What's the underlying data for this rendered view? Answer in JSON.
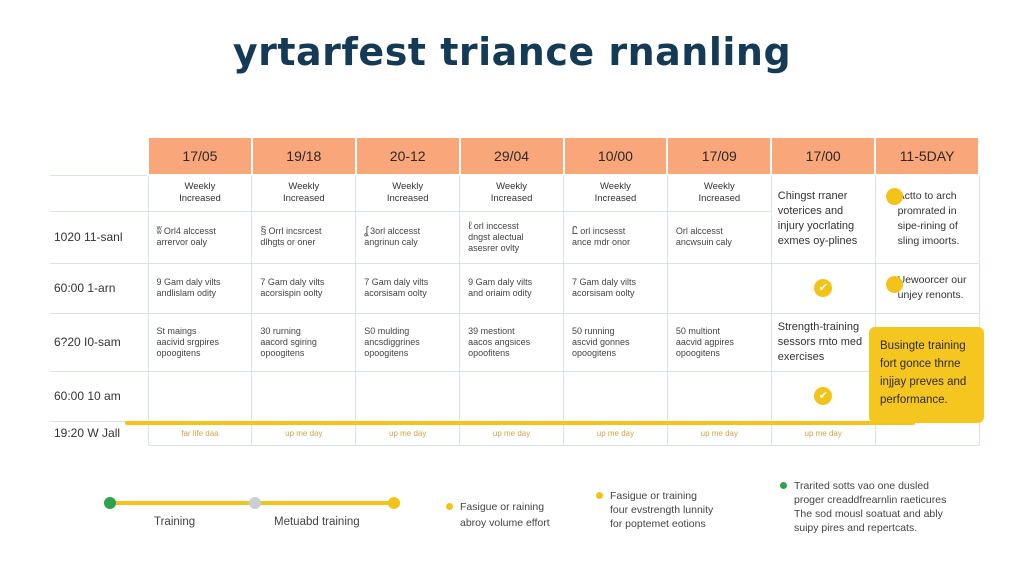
{
  "title": "yrtarfest triance rnanling",
  "days": [
    "17/05",
    "19/18",
    "20-12",
    "29/04",
    "10/00",
    "17/09",
    "17/00",
    "11-5DAY"
  ],
  "weekly_row": {
    "cells": [
      [
        "Weekly",
        "Increased"
      ],
      [
        "Weekly",
        "Increased"
      ],
      [
        "Weekly",
        "Increased"
      ],
      [
        "Weekly",
        "Increased"
      ],
      [
        "Weekly",
        "Increased"
      ],
      [
        "Weekly",
        "Increased"
      ]
    ]
  },
  "rows": [
    {
      "label": "1020 11-sanl",
      "cells": [
        {
          "icon": "ʬ",
          "text": [
            "Orl4 alccesst",
            "arrervor oaly"
          ]
        },
        {
          "icon": "§",
          "text": [
            "Orrl incsrcest",
            "dlhgts or oner"
          ]
        },
        {
          "icon": "ʆ",
          "text": [
            "3orl alccesst",
            "angrinun caly"
          ]
        },
        {
          "icon": "ℓ",
          "text": [
            "orl inccesst",
            "dngst alectual",
            "asesrer ovlty"
          ]
        },
        {
          "icon": "Ꮭ",
          "text": [
            "orl incsesst",
            "ance mdr onor"
          ]
        },
        {
          "icon": "",
          "text": [
            "Orl alccesst",
            "ancwsuin caly"
          ]
        }
      ],
      "col7": [
        "Chingst rraner",
        "voterices and",
        "injury yocrlating",
        "exmes oy-plines"
      ],
      "col8": [
        "Actto to arch",
        "promrated in",
        "sipe-rining of",
        "sling imoorts."
      ]
    },
    {
      "label": "60:00 1-arn",
      "cells": [
        {
          "text": [
            "9 Gam daly vilts",
            "andlislam odity"
          ]
        },
        {
          "text": [
            "7 Gam daly vilts",
            "acorsispin oolty"
          ]
        },
        {
          "text": [
            "7 Gam daly vilts",
            "acorsisam oolty"
          ]
        },
        {
          "text": [
            "9 Gam daly vilts",
            "and oriaim odity"
          ]
        },
        {
          "text": [
            "7 Gam daly vilts",
            "acorsisam oolty"
          ]
        },
        {
          "text": []
        }
      ],
      "col7_icon": "✔",
      "col8": [
        "Uewoorcer our",
        "unjey renonts."
      ]
    },
    {
      "label": "6?20 I0-sam",
      "cells": [
        {
          "text": [
            "St maings",
            "aacivid srgpires",
            "opoogitens"
          ]
        },
        {
          "text": [
            "30 rurning",
            "aacord sgiring",
            "opoogitens"
          ]
        },
        {
          "text": [
            "S0 mulding",
            "ancsdiggrines",
            "opoogitens"
          ]
        },
        {
          "text": [
            "39 mestiont",
            "aacos angsices",
            "opoofitens"
          ]
        },
        {
          "text": [
            "50 running",
            "ascvid gonnes",
            "opoogitens"
          ]
        },
        {
          "text": [
            "50 multiont",
            "aacvid agpires",
            "opoogitens"
          ]
        }
      ],
      "col7": [
        "Strength-training",
        "sessors rnto med",
        "exercises"
      ]
    },
    {
      "label": "60:00 10 am",
      "col7_icon": "✔"
    },
    {
      "label": "19:20 W Jall",
      "small": [
        "far life daa",
        "up me day",
        "up me day",
        "up me day",
        "up me day",
        "up me day",
        "up me day"
      ]
    }
  ],
  "callout": [
    "Busingte training",
    "fort gonce thrne",
    "injjay preves and",
    "performance."
  ],
  "legend": {
    "training_label": "Training",
    "metuabd_label": "Metuabd training",
    "items": [
      {
        "color": "#f3c319",
        "lines": [
          "Fasigue or raining",
          "abroy volume effort"
        ]
      },
      {
        "color": "#f3c319",
        "lines": [
          "Fasigue or training",
          "four evstrength lunnity",
          "for poptemet eotions"
        ]
      },
      {
        "color": "#2ca24a",
        "lines": [
          "Trarited sotts vao one dusled",
          "proger creaddfrearnlin raeticures",
          "The sod mousl soatuat and ably",
          "suipy pires and repertcats."
        ]
      }
    ]
  },
  "colors": {
    "header": "#f9a67a",
    "accent": "#f3c319",
    "title": "#143a55",
    "green": "#2ca24a",
    "gray": "#c9cfd3"
  }
}
